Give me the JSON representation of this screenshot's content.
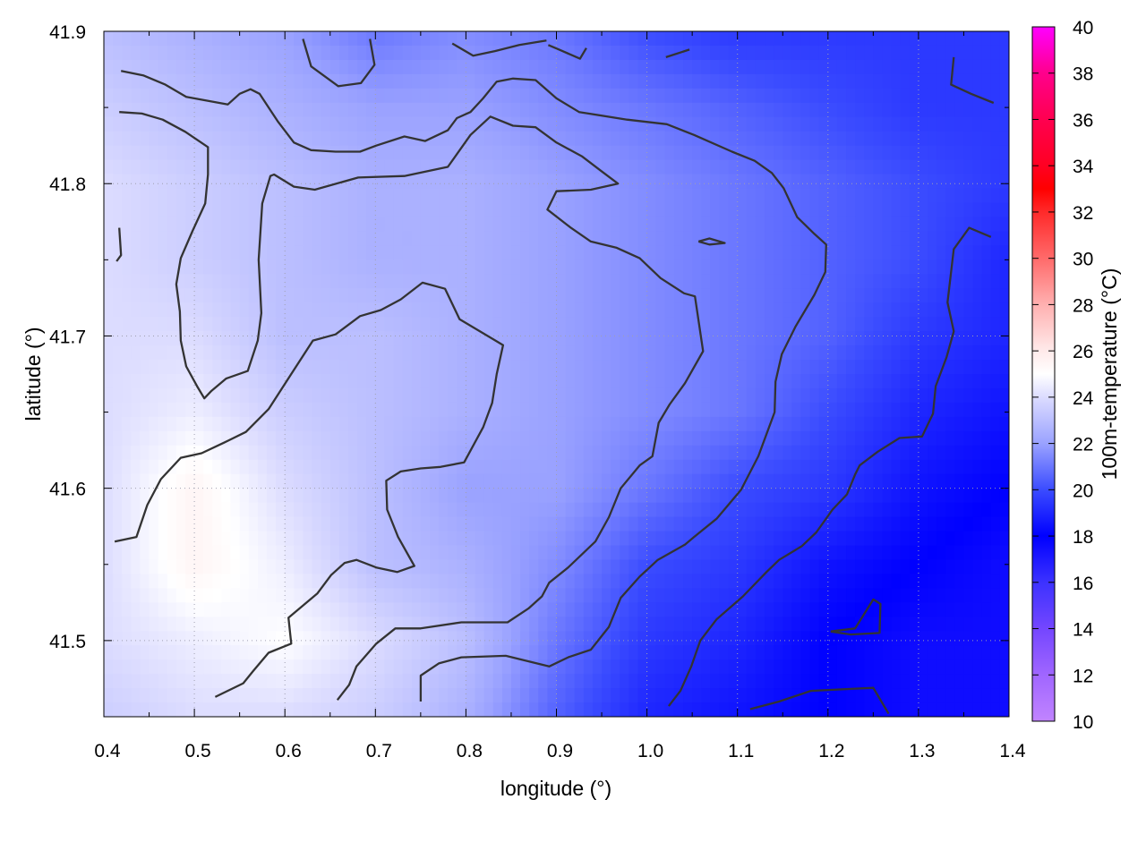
{
  "chart_data": {
    "type": "heatmap",
    "xlabel": "longitude (°)",
    "ylabel": "latitude (°)",
    "colorbar_label": "100m-temperature (°C)",
    "xlim": [
      0.4,
      1.4
    ],
    "ylim": [
      41.45,
      41.9
    ],
    "xticks": [
      "0.4",
      "0.5",
      "0.6",
      "0.7",
      "0.8",
      "0.9",
      "1.0",
      "1.1",
      "1.2",
      "1.3",
      "1.4"
    ],
    "yticks": [
      "41.5",
      "41.6",
      "41.7",
      "41.8",
      "41.9"
    ],
    "colorbar_ticks": [
      "10",
      "12",
      "14",
      "16",
      "18",
      "20",
      "22",
      "24",
      "26",
      "28",
      "30",
      "32",
      "34",
      "36",
      "38",
      "40"
    ],
    "clim": [
      10,
      40
    ],
    "grid": true,
    "colormap": [
      [
        10,
        "#c184ff"
      ],
      [
        12,
        "#a066ff"
      ],
      [
        14,
        "#7446ff"
      ],
      [
        16,
        "#3c32ff"
      ],
      [
        18,
        "#0000ff"
      ],
      [
        20,
        "#3b4cff"
      ],
      [
        22,
        "#9aa2ff"
      ],
      [
        24,
        "#dcdcff"
      ],
      [
        25,
        "#ffffff"
      ],
      [
        26,
        "#ffeaea"
      ],
      [
        28,
        "#ffb0b0"
      ],
      [
        30,
        "#ff6a6a"
      ],
      [
        32,
        "#ff2a2a"
      ],
      [
        33,
        "#ff0000"
      ],
      [
        34,
        "#ff0022"
      ],
      [
        36,
        "#ff0050"
      ],
      [
        38,
        "#ff008c"
      ],
      [
        40,
        "#ff00ff"
      ]
    ],
    "grid_lon": [
      0.4,
      0.5,
      0.6,
      0.7,
      0.8,
      0.9,
      1.0,
      1.1,
      1.2,
      1.3,
      1.4
    ],
    "grid_lat": [
      41.9,
      41.85,
      41.8,
      41.75,
      41.7,
      41.65,
      41.6,
      41.55,
      41.5,
      41.45
    ],
    "temperature": [
      [
        23,
        22.5,
        22,
        21,
        21.5,
        21,
        20,
        19.5,
        19.5,
        19.5,
        19.5
      ],
      [
        23.5,
        23,
        22.5,
        22,
        22,
        21.5,
        21,
        20.5,
        20,
        19.5,
        19.5
      ],
      [
        24,
        23.5,
        23,
        22.5,
        22.5,
        22,
        21.5,
        21,
        20.5,
        20,
        19.5
      ],
      [
        24,
        23.5,
        23,
        22.5,
        22.5,
        22,
        21.5,
        21,
        20.5,
        20,
        19
      ],
      [
        24,
        24,
        23,
        23,
        22.5,
        22,
        21.5,
        21,
        20.5,
        19.5,
        19
      ],
      [
        24,
        24.5,
        23.5,
        23,
        22.5,
        22,
        21.5,
        21,
        20,
        19,
        18.5
      ],
      [
        24,
        25.5,
        24,
        23,
        22,
        22,
        21,
        20,
        19.5,
        18.5,
        18
      ],
      [
        24,
        25.5,
        24.5,
        23,
        22.5,
        21.5,
        20,
        19.5,
        18.5,
        18,
        17.5
      ],
      [
        24,
        24.5,
        25,
        24,
        23,
        21,
        19.5,
        19,
        18,
        17.5,
        17.5
      ],
      [
        23.5,
        24,
        24,
        23.5,
        22.5,
        20.5,
        19,
        18.5,
        18,
        17.5,
        17.5
      ]
    ],
    "contour_color": "#333333",
    "contours": [
      [
        [
          0.419,
          41.874
        ],
        [
          0.444,
          41.871
        ],
        [
          0.468,
          41.865
        ],
        [
          0.491,
          41.857
        ],
        [
          0.537,
          41.852
        ],
        [
          0.55,
          41.859
        ],
        [
          0.562,
          41.862
        ],
        [
          0.572,
          41.859
        ],
        [
          0.592,
          41.841
        ],
        [
          0.61,
          41.827
        ],
        [
          0.629,
          41.822
        ],
        [
          0.656,
          41.821
        ],
        [
          0.683,
          41.821
        ],
        [
          0.701,
          41.825
        ],
        [
          0.732,
          41.831
        ],
        [
          0.755,
          41.828
        ],
        [
          0.78,
          41.835
        ],
        [
          0.79,
          41.843
        ],
        [
          0.805,
          41.847
        ],
        [
          0.819,
          41.856
        ],
        [
          0.834,
          41.867
        ],
        [
          0.852,
          41.869
        ],
        [
          0.877,
          41.868
        ],
        [
          0.9,
          41.856
        ],
        [
          0.925,
          41.847
        ],
        [
          0.978,
          41.842
        ],
        [
          1.022,
          41.839
        ],
        [
          1.052,
          41.832
        ],
        [
          1.094,
          41.821
        ],
        [
          1.119,
          41.815
        ],
        [
          1.138,
          41.807
        ],
        [
          1.151,
          41.797
        ],
        [
          1.166,
          41.778
        ],
        [
          1.185,
          41.767
        ],
        [
          1.198,
          41.76
        ],
        [
          1.197,
          41.742
        ],
        [
          1.185,
          41.727
        ],
        [
          1.164,
          41.706
        ],
        [
          1.149,
          41.688
        ],
        [
          1.142,
          41.67
        ],
        [
          1.141,
          41.65
        ],
        [
          1.123,
          41.621
        ],
        [
          1.104,
          41.599
        ],
        [
          1.077,
          41.58
        ],
        [
          1.052,
          41.568
        ],
        [
          1.042,
          41.563
        ],
        [
          1.012,
          41.553
        ],
        [
          0.992,
          41.542
        ],
        [
          0.971,
          41.528
        ],
        [
          0.958,
          41.509
        ],
        [
          0.938,
          41.494
        ],
        [
          0.913,
          41.489
        ],
        [
          0.892,
          41.483
        ],
        [
          0.844,
          41.49
        ],
        [
          0.795,
          41.489
        ],
        [
          0.77,
          41.485
        ],
        [
          0.75,
          41.477
        ],
        [
          0.75,
          41.46
        ]
      ],
      [
        [
          0.417,
          41.847
        ],
        [
          0.442,
          41.846
        ],
        [
          0.465,
          41.842
        ],
        [
          0.49,
          41.834
        ],
        [
          0.515,
          41.824
        ],
        [
          0.515,
          41.806
        ],
        [
          0.512,
          41.787
        ],
        [
          0.498,
          41.769
        ],
        [
          0.485,
          41.751
        ],
        [
          0.48,
          41.734
        ],
        [
          0.484,
          41.716
        ],
        [
          0.485,
          41.697
        ],
        [
          0.491,
          41.68
        ],
        [
          0.503,
          41.667
        ],
        [
          0.511,
          41.659
        ],
        [
          0.519,
          41.664
        ],
        [
          0.535,
          41.672
        ],
        [
          0.559,
          41.677
        ],
        [
          0.57,
          41.697
        ],
        [
          0.574,
          41.715
        ],
        [
          0.571,
          41.75
        ],
        [
          0.575,
          41.787
        ],
        [
          0.584,
          41.805
        ],
        [
          0.588,
          41.806
        ],
        [
          0.61,
          41.798
        ],
        [
          0.633,
          41.796
        ],
        [
          0.681,
          41.804
        ],
        [
          0.732,
          41.805
        ],
        [
          0.78,
          41.811
        ],
        [
          0.805,
          41.832
        ],
        [
          0.827,
          41.844
        ],
        [
          0.852,
          41.838
        ],
        [
          0.877,
          41.837
        ],
        [
          0.9,
          41.827
        ],
        [
          0.928,
          41.818
        ],
        [
          0.95,
          41.808
        ],
        [
          0.968,
          41.8
        ],
        [
          0.938,
          41.796
        ],
        [
          0.9,
          41.795
        ],
        [
          0.89,
          41.783
        ],
        [
          0.916,
          41.771
        ],
        [
          0.938,
          41.762
        ],
        [
          0.966,
          41.758
        ],
        [
          0.992,
          41.751
        ],
        [
          1.015,
          41.738
        ],
        [
          1.041,
          41.728
        ],
        [
          1.053,
          41.726
        ],
        [
          1.062,
          41.69
        ],
        [
          1.042,
          41.669
        ],
        [
          1.025,
          41.655
        ],
        [
          1.013,
          41.643
        ],
        [
          1.006,
          41.621
        ],
        [
          0.992,
          41.615
        ],
        [
          0.971,
          41.6
        ],
        [
          0.958,
          41.581
        ],
        [
          0.943,
          41.565
        ],
        [
          0.913,
          41.548
        ],
        [
          0.892,
          41.538
        ],
        [
          0.884,
          41.529
        ],
        [
          0.869,
          41.521
        ],
        [
          0.846,
          41.512
        ],
        [
          0.795,
          41.512
        ],
        [
          0.75,
          41.508
        ],
        [
          0.722,
          41.508
        ],
        [
          0.701,
          41.498
        ],
        [
          0.679,
          41.483
        ],
        [
          0.671,
          41.471
        ],
        [
          0.658,
          41.461
        ]
      ],
      [
        [
          0.412,
          41.565
        ],
        [
          0.436,
          41.568
        ],
        [
          0.448,
          41.589
        ],
        [
          0.463,
          41.606
        ],
        [
          0.485,
          41.62
        ],
        [
          0.508,
          41.623
        ],
        [
          0.533,
          41.63
        ],
        [
          0.557,
          41.637
        ],
        [
          0.582,
          41.652
        ],
        [
          0.607,
          41.675
        ],
        [
          0.631,
          41.697
        ],
        [
          0.656,
          41.701
        ],
        [
          0.683,
          41.713
        ],
        [
          0.706,
          41.717
        ],
        [
          0.728,
          41.724
        ],
        [
          0.752,
          41.735
        ],
        [
          0.777,
          41.731
        ],
        [
          0.793,
          41.711
        ],
        [
          0.841,
          41.694
        ],
        [
          0.834,
          41.675
        ],
        [
          0.829,
          41.656
        ],
        [
          0.819,
          41.64
        ],
        [
          0.798,
          41.617
        ],
        [
          0.772,
          41.614
        ],
        [
          0.75,
          41.613
        ],
        [
          0.728,
          41.611
        ],
        [
          0.712,
          41.605
        ],
        [
          0.713,
          41.586
        ],
        [
          0.725,
          41.568
        ],
        [
          0.743,
          41.549
        ],
        [
          0.724,
          41.545
        ],
        [
          0.701,
          41.548
        ],
        [
          0.679,
          41.553
        ],
        [
          0.666,
          41.551
        ],
        [
          0.651,
          41.543
        ],
        [
          0.636,
          41.531
        ],
        [
          0.604,
          41.515
        ],
        [
          0.607,
          41.498
        ],
        [
          0.582,
          41.492
        ],
        [
          0.565,
          41.48
        ],
        [
          0.554,
          41.472
        ],
        [
          0.523,
          41.463
        ]
      ],
      [
        [
          0.62,
          41.895
        ],
        [
          0.629,
          41.877
        ],
        [
          0.659,
          41.864
        ],
        [
          0.684,
          41.866
        ],
        [
          0.699,
          41.878
        ],
        [
          0.694,
          41.895
        ]
      ],
      [
        [
          0.785,
          41.892
        ],
        [
          0.808,
          41.884
        ],
        [
          0.832,
          41.887
        ],
        [
          0.859,
          41.891
        ],
        [
          0.889,
          41.894
        ]
      ],
      [
        [
          0.891,
          41.891
        ],
        [
          0.903,
          41.888
        ],
        [
          0.926,
          41.882
        ],
        [
          0.933,
          41.889
        ]
      ],
      [
        [
          1.021,
          41.883
        ],
        [
          1.047,
          41.888
        ]
      ],
      [
        [
          1.339,
          41.883
        ],
        [
          1.336,
          41.865
        ],
        [
          1.358,
          41.859
        ],
        [
          1.383,
          41.853
        ]
      ],
      [
        [
          0.417,
          41.771
        ],
        [
          0.419,
          41.753
        ],
        [
          0.414,
          41.749
        ]
      ],
      [
        [
          1.057,
          41.762
        ],
        [
          1.069,
          41.764
        ],
        [
          1.086,
          41.761
        ],
        [
          1.069,
          41.76
        ],
        [
          1.057,
          41.762
        ]
      ],
      [
        [
          1.38,
          41.765
        ],
        [
          1.356,
          41.771
        ],
        [
          1.339,
          41.757
        ],
        [
          1.332,
          41.722
        ],
        [
          1.339,
          41.703
        ],
        [
          1.331,
          41.686
        ],
        [
          1.319,
          41.667
        ],
        [
          1.316,
          41.649
        ],
        [
          1.304,
          41.634
        ],
        [
          1.279,
          41.633
        ],
        [
          1.255,
          41.624
        ],
        [
          1.235,
          41.615
        ],
        [
          1.23,
          41.609
        ],
        [
          1.221,
          41.596
        ],
        [
          1.205,
          41.586
        ],
        [
          1.187,
          41.571
        ],
        [
          1.171,
          41.562
        ],
        [
          1.146,
          41.553
        ],
        [
          1.132,
          41.545
        ],
        [
          1.106,
          41.529
        ],
        [
          1.077,
          41.514
        ],
        [
          1.059,
          41.5
        ],
        [
          1.049,
          41.483
        ],
        [
          1.037,
          41.467
        ],
        [
          1.024,
          41.457
        ]
      ],
      [
        [
          1.114,
          41.455
        ],
        [
          1.146,
          41.46
        ],
        [
          1.181,
          41.467
        ],
        [
          1.215,
          41.468
        ],
        [
          1.25,
          41.469
        ],
        [
          1.267,
          41.452
        ]
      ],
      [
        [
          1.203,
          41.506
        ],
        [
          1.23,
          41.508
        ],
        [
          1.25,
          41.527
        ],
        [
          1.258,
          41.524
        ],
        [
          1.257,
          41.505
        ],
        [
          1.225,
          41.504
        ],
        [
          1.203,
          41.506
        ]
      ]
    ]
  }
}
